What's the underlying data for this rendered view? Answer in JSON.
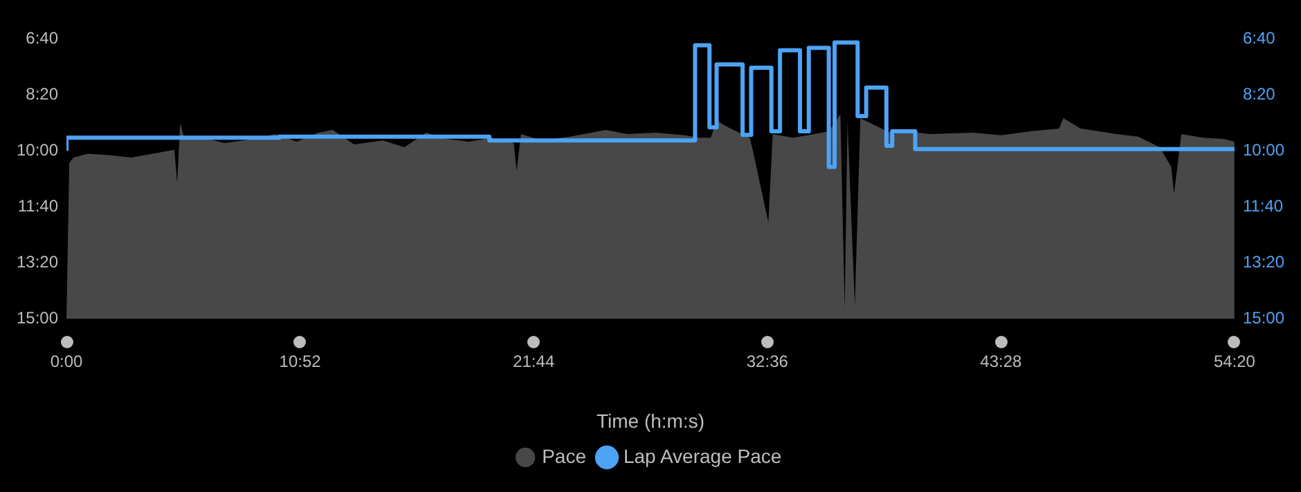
{
  "chart_data": {
    "type": "area",
    "xlabel": "Time (h:m:s)",
    "xlim": [
      0,
      54.333
    ],
    "xticks": [
      {
        "value": 0,
        "label": "0:00"
      },
      {
        "value": 10.867,
        "label": "10:52"
      },
      {
        "value": 21.733,
        "label": "21:44"
      },
      {
        "value": 32.6,
        "label": "32:36"
      },
      {
        "value": 43.467,
        "label": "43:28"
      },
      {
        "value": 54.333,
        "label": "54:20"
      }
    ],
    "ylim": [
      15,
      6.667
    ],
    "yticks": [
      {
        "value": 6.667,
        "label": "6:40"
      },
      {
        "value": 8.333,
        "label": "8:20"
      },
      {
        "value": 10,
        "label": "10:00"
      },
      {
        "value": 11.667,
        "label": "11:40"
      },
      {
        "value": 13.333,
        "label": "13:20"
      },
      {
        "value": 15,
        "label": "15:00"
      }
    ],
    "y2lim": [
      15,
      6.667
    ],
    "y2ticks": [
      {
        "value": 6.667,
        "label": "6:40"
      },
      {
        "value": 8.333,
        "label": "8:20"
      },
      {
        "value": 10,
        "label": "10:00"
      },
      {
        "value": 11.667,
        "label": "11:40"
      },
      {
        "value": 13.333,
        "label": "13:20"
      },
      {
        "value": 15,
        "label": "15:00"
      }
    ],
    "legend": "bottom",
    "marker": "none",
    "series": [
      {
        "name": "Pace",
        "type": "area",
        "color": "#484848",
        "x": [
          0,
          0.13,
          0.33,
          1.0,
          2.01,
          3.01,
          4.01,
          5.02,
          5.15,
          5.29,
          5.49,
          6.36,
          7.36,
          8.7,
          9.7,
          10.71,
          11.71,
          12.38,
          13.38,
          14.72,
          15.72,
          16.73,
          17.73,
          18.73,
          19.74,
          20.81,
          20.94,
          21.14,
          22.08,
          23.42,
          25.09,
          26.09,
          27.43,
          28.77,
          29.44,
          29.97,
          30.24,
          30.78,
          31.78,
          31.92,
          32.65,
          32.85,
          33.79,
          34.79,
          35.46,
          36.0,
          36.2,
          36.33,
          36.67,
          36.93,
          37.8,
          38.47,
          39.14,
          40.14,
          42.15,
          43.49,
          44.83,
          46.17,
          46.37,
          47.17,
          48.85,
          49.85,
          50.85,
          51.39,
          51.52,
          51.86,
          52.86,
          53.86,
          54.33,
          54.33
        ],
        "values": [
          15.0,
          10.36,
          10.2,
          10.09,
          10.13,
          10.2,
          10.09,
          9.97,
          10.95,
          9.18,
          9.65,
          9.61,
          9.77,
          9.65,
          9.5,
          9.73,
          9.46,
          9.38,
          9.81,
          9.69,
          9.89,
          9.46,
          9.65,
          9.73,
          9.61,
          9.77,
          10.6,
          9.5,
          9.69,
          9.58,
          9.38,
          9.5,
          9.46,
          9.54,
          9.61,
          9.61,
          9.1,
          9.3,
          9.61,
          9.97,
          12.13,
          9.5,
          9.61,
          9.5,
          9.42,
          8.91,
          14.69,
          9.1,
          14.61,
          9.03,
          9.3,
          9.5,
          9.42,
          9.5,
          9.46,
          9.54,
          9.42,
          9.34,
          9.03,
          9.34,
          9.5,
          9.58,
          9.89,
          10.48,
          11.27,
          9.5,
          9.61,
          9.65,
          9.73,
          15
        ]
      },
      {
        "name": "Lap Average Pace",
        "type": "step",
        "axis": "y2",
        "color": "#4da3f5",
        "x": [
          0,
          9.9,
          19.67,
          29.24,
          29.91,
          30.24,
          31.45,
          31.85,
          32.79,
          33.19,
          34.12,
          34.53,
          35.46,
          35.73,
          36.8,
          37.2,
          38.14,
          38.41,
          39.48,
          48.85,
          54.33
        ],
        "values": [
          10.0,
          9.61,
          9.58,
          9.69,
          6.86,
          9.3,
          7.43,
          9.53,
          7.53,
          9.42,
          7.01,
          9.42,
          6.94,
          10.48,
          6.78,
          8.97,
          8.12,
          9.85,
          9.42,
          9.95,
          9.95
        ]
      }
    ]
  }
}
